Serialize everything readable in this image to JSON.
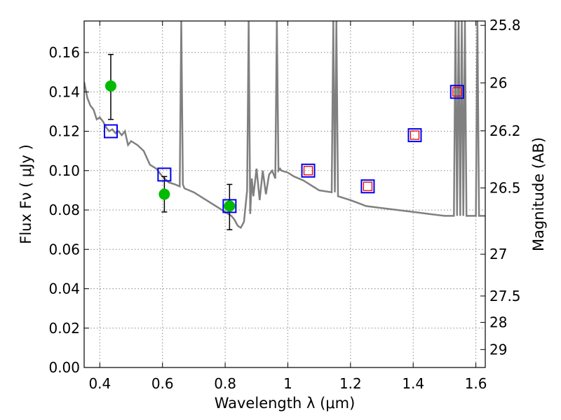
{
  "chart_data": {
    "type": "scatter",
    "title": "",
    "xlabel": "Wavelength  λ (μm)",
    "ylabel": "Flux  Fν  ( μJy )",
    "ylabel_right": "Magnitude (AB)",
    "xlim": [
      0.35,
      1.63
    ],
    "ylim": [
      0.0,
      0.176
    ],
    "grid": true,
    "grid_style": "dotted",
    "x_ticks": [
      0.4,
      0.6,
      0.8,
      1.0,
      1.2,
      1.4,
      1.6
    ],
    "x_tick_labels": [
      "0.4",
      "0.6",
      "0.8",
      "1",
      "1.2",
      "1.4",
      "1.6"
    ],
    "y_ticks": [
      0.0,
      0.02,
      0.04,
      0.06,
      0.08,
      0.1,
      0.12,
      0.14,
      0.16
    ],
    "y_tick_labels": [
      "0.00",
      "0.02",
      "0.04",
      "0.06",
      "0.08",
      "0.10",
      "0.12",
      "0.14",
      "0.16"
    ],
    "right_ticks": [
      {
        "mag": 25.8,
        "label": "25.8"
      },
      {
        "mag": 26.0,
        "label": "26"
      },
      {
        "mag": 26.2,
        "label": "26.2"
      },
      {
        "mag": 26.5,
        "label": "26.5"
      },
      {
        "mag": 27.0,
        "label": "27"
      },
      {
        "mag": 27.5,
        "label": "27.5"
      },
      {
        "mag": 28.0,
        "label": "28"
      },
      {
        "mag": 29.0,
        "label": "29"
      }
    ],
    "colors": {
      "sed_model": "#808080",
      "observed": "#00bb00",
      "model_photometry": "#0000ee",
      "upper_limits": "#ee0000",
      "errorbar": "#000000",
      "grid": "#888888"
    },
    "series": [
      {
        "role": "sed_model",
        "style": "line",
        "x": [
          0.35,
          0.36,
          0.37,
          0.38,
          0.39,
          0.4,
          0.41,
          0.42,
          0.43,
          0.44,
          0.45,
          0.46,
          0.47,
          0.48,
          0.49,
          0.5,
          0.52,
          0.54,
          0.56,
          0.58,
          0.6,
          0.62,
          0.64,
          0.655,
          0.66,
          0.665,
          0.67,
          0.7,
          0.72,
          0.74,
          0.76,
          0.78,
          0.8,
          0.82,
          0.83,
          0.84,
          0.85,
          0.86,
          0.87,
          0.875,
          0.88,
          0.885,
          0.89,
          0.9,
          0.91,
          0.92,
          0.93,
          0.94,
          0.95,
          0.96,
          0.965,
          0.97,
          0.975,
          0.98,
          1.0,
          1.02,
          1.05,
          1.08,
          1.1,
          1.14,
          1.145,
          1.15,
          1.155,
          1.16,
          1.2,
          1.25,
          1.3,
          1.35,
          1.4,
          1.45,
          1.5,
          1.53,
          1.535,
          1.54,
          1.545,
          1.55,
          1.555,
          1.56,
          1.565,
          1.57,
          1.6,
          1.605,
          1.61,
          1.63
        ],
        "y": [
          0.145,
          0.137,
          0.133,
          0.131,
          0.126,
          0.127,
          0.125,
          0.122,
          0.12,
          0.121,
          0.119,
          0.12,
          0.118,
          0.12,
          0.113,
          0.115,
          0.113,
          0.11,
          0.103,
          0.101,
          0.097,
          0.094,
          0.093,
          0.092,
          0.176,
          0.093,
          0.091,
          0.089,
          0.087,
          0.085,
          0.083,
          0.081,
          0.079,
          0.077,
          0.075,
          0.072,
          0.071,
          0.074,
          0.09,
          0.176,
          0.078,
          0.096,
          0.087,
          0.101,
          0.085,
          0.1,
          0.088,
          0.098,
          0.1,
          0.096,
          0.176,
          0.1,
          0.101,
          0.1,
          0.099,
          0.097,
          0.095,
          0.092,
          0.09,
          0.089,
          0.176,
          0.089,
          0.176,
          0.087,
          0.085,
          0.082,
          0.081,
          0.08,
          0.079,
          0.078,
          0.077,
          0.077,
          0.176,
          0.077,
          0.176,
          0.077,
          0.176,
          0.077,
          0.176,
          0.077,
          0.077,
          0.176,
          0.077,
          0.077
        ]
      },
      {
        "role": "observed",
        "style": "circle",
        "x": [
          0.435,
          0.606,
          0.814
        ],
        "y": [
          0.143,
          0.088,
          0.082
        ],
        "yerr_low": [
          0.017,
          0.009,
          0.012
        ],
        "yerr_high": [
          0.016,
          0.009,
          0.011
        ]
      },
      {
        "role": "model_photometry",
        "style": "open-square",
        "x": [
          0.435,
          0.606,
          0.814,
          1.065,
          1.255,
          1.405,
          1.54
        ],
        "y": [
          0.12,
          0.098,
          0.082,
          0.1,
          0.092,
          0.118,
          0.14
        ]
      },
      {
        "role": "upper_limits",
        "style": "open-square-small",
        "x": [
          1.065,
          1.255,
          1.405,
          1.54
        ],
        "y": [
          0.1,
          0.092,
          0.118,
          0.14
        ]
      }
    ]
  }
}
